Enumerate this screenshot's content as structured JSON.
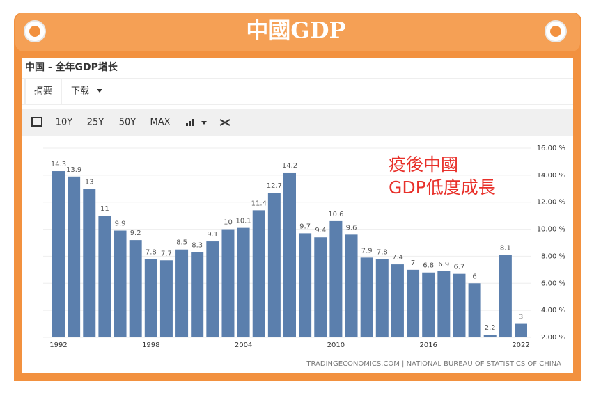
{
  "header": {
    "title": "中國GDP"
  },
  "panel": {
    "title": "中国 - 全年GDP增长",
    "tabs": [
      "摘要",
      "下载"
    ],
    "toolbar": [
      "10Y",
      "25Y",
      "50Y",
      "MAX"
    ]
  },
  "chart_data": {
    "type": "bar",
    "x": [
      1992,
      1993,
      1994,
      1995,
      1996,
      1997,
      1998,
      1999,
      2000,
      2001,
      2002,
      2003,
      2004,
      2005,
      2006,
      2007,
      2008,
      2009,
      2010,
      2011,
      2012,
      2013,
      2014,
      2015,
      2016,
      2017,
      2018,
      2019,
      2020,
      2021,
      2022
    ],
    "values": [
      14.3,
      13.9,
      13,
      11,
      9.9,
      9.2,
      7.8,
      7.7,
      8.5,
      8.3,
      9.1,
      10,
      10.1,
      11.4,
      12.7,
      14.2,
      9.7,
      9.4,
      10.6,
      9.6,
      7.9,
      7.8,
      7.4,
      7,
      6.8,
      6.9,
      6.7,
      6,
      2.2,
      8.1,
      3
    ],
    "color": "#5b7fad",
    "xlim": [
      1992,
      2022
    ],
    "xticks": [
      1992,
      1998,
      2004,
      2010,
      2016,
      2022
    ],
    "ylim": [
      2,
      16
    ],
    "yticks": [
      {
        "value": 2,
        "label": "2.00 %"
      },
      {
        "value": 4,
        "label": "4.00 %"
      },
      {
        "value": 6,
        "label": "6.00 %"
      },
      {
        "value": 8,
        "label": "8.00 %"
      },
      {
        "value": 10,
        "label": "10.00 %"
      },
      {
        "value": 12,
        "label": "12.00 %"
      },
      {
        "value": 14,
        "label": "14.00 %"
      },
      {
        "value": 16,
        "label": "16.00 %"
      }
    ],
    "grid": true,
    "annotation": [
      "疫後中國",
      "GDP低度成長"
    ],
    "source": "TRADINGECONOMICS.COM | NATIONAL BUREAU OF STATISTICS OF CHINA"
  }
}
